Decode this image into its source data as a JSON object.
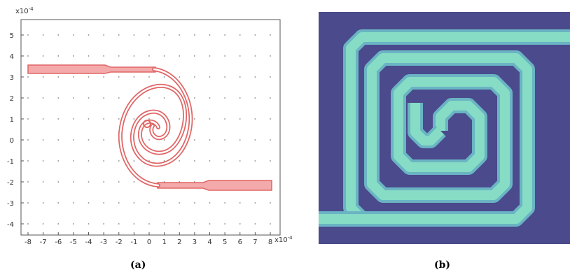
{
  "panel_a": {
    "x_exponent_label": "x10",
    "x_exponent_sup": "-4",
    "y_exponent_label": "x10",
    "y_exponent_sup": "-4",
    "x_ticks": [
      "-8",
      "-7",
      "-6",
      "-5",
      "-4",
      "-3",
      "-2",
      "-1",
      "0",
      "1",
      "2",
      "3",
      "4",
      "5",
      "6",
      "7",
      "8"
    ],
    "y_ticks": [
      "5",
      "4",
      "3",
      "2",
      "1",
      "0",
      "-1",
      "-2",
      "-3",
      "-4"
    ],
    "spiral_color": "#e06666",
    "spiral_fill": "#f4aaaa",
    "caption": "(a)"
  },
  "panel_b": {
    "background_color": "#4a4a8c",
    "trace_color": "#7fd6c2",
    "caption": "(b)"
  }
}
